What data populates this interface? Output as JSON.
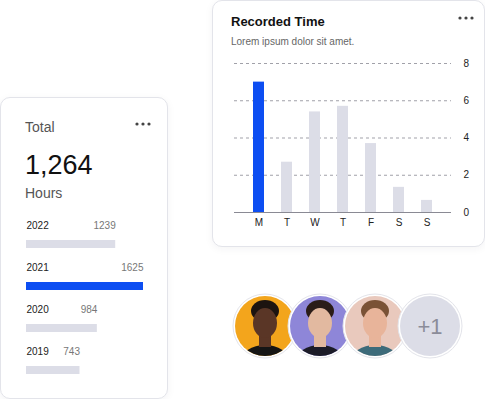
{
  "chart_data": [
    {
      "type": "bar",
      "title": "Recorded Time",
      "subtitle": "Lorem ipsum dolor sit amet.",
      "categories": [
        "M",
        "T",
        "W",
        "T",
        "F",
        "S",
        "S"
      ],
      "values": [
        7,
        2.7,
        5.4,
        5.7,
        3.7,
        1.35,
        0.65
      ],
      "colors": [
        "#0d4ef2",
        "#dcdde7",
        "#dcdde7",
        "#dcdde7",
        "#dcdde7",
        "#dcdde7",
        "#dcdde7"
      ],
      "ylim": [
        0,
        8
      ],
      "yticks": [
        0,
        2,
        4,
        6,
        8
      ],
      "grid": true
    },
    {
      "type": "bar",
      "title": "Total",
      "orientation": "horizontal",
      "categories": [
        "2022",
        "2021",
        "2020",
        "2019"
      ],
      "values": [
        1239,
        1625,
        984,
        743
      ],
      "colors": [
        "#dcdde7",
        "#0d4ef2",
        "#dcdde7",
        "#dcdde7"
      ],
      "xlim": [
        0,
        1625
      ],
      "data_labels": true,
      "tick_labels": "y"
    }
  ],
  "total_card": {
    "value": 1264,
    "label": "1,264",
    "unit": "Hours"
  },
  "avatars": {
    "more": "+1"
  }
}
